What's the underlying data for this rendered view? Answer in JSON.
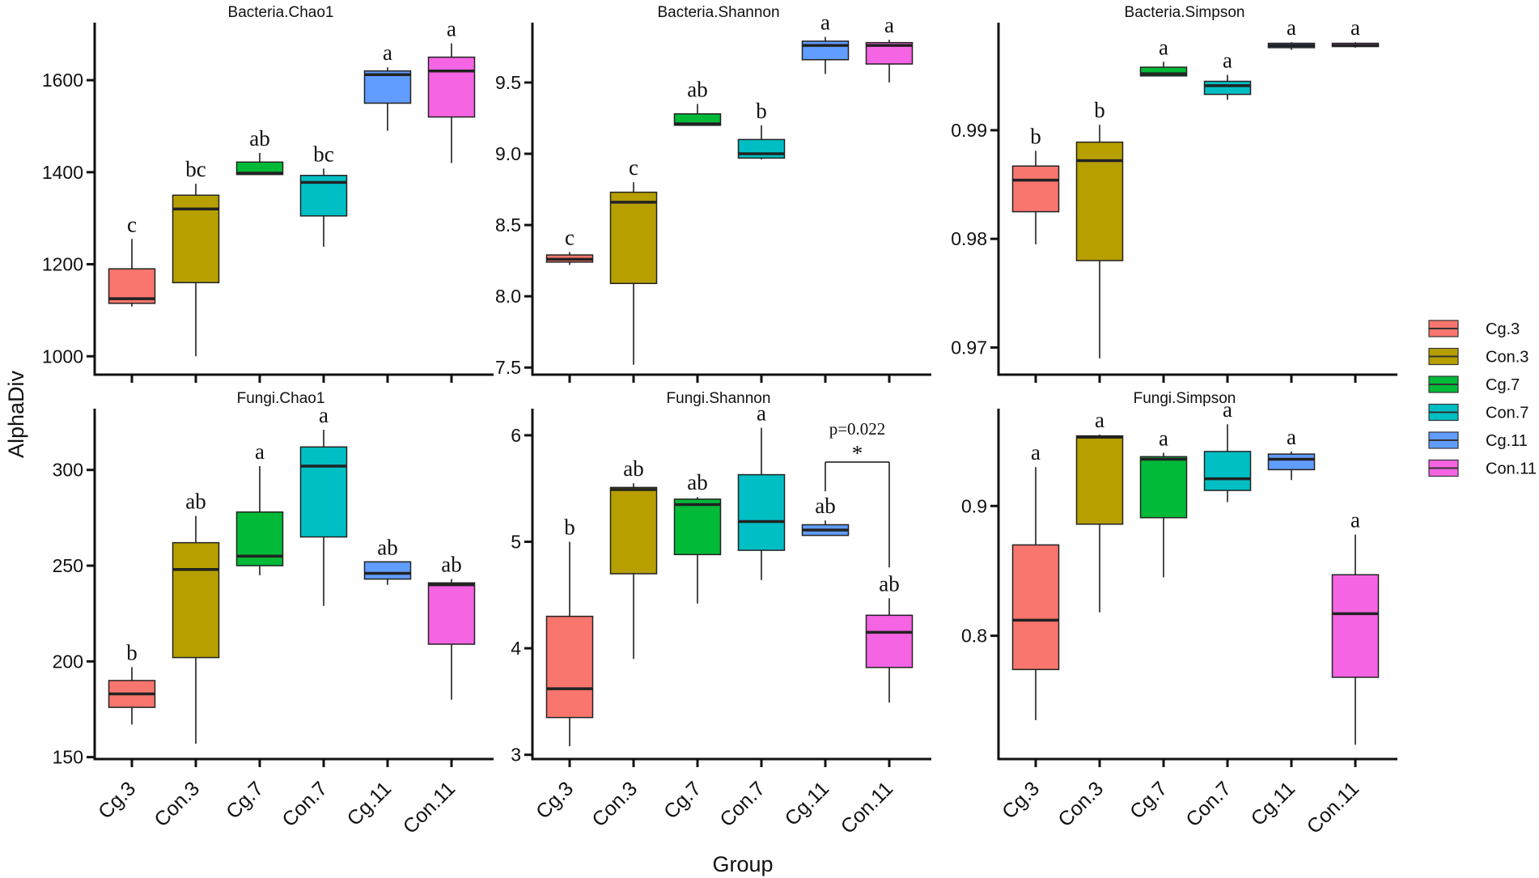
{
  "chart_data": {
    "type": "box",
    "x_label": "Group",
    "y_label": "AlphaDiv",
    "groups": [
      "Cg.3",
      "Con.3",
      "Cg.7",
      "Con.7",
      "Cg.11",
      "Con.11"
    ],
    "colors": [
      "#F8766D",
      "#B79F00",
      "#00BA38",
      "#00BFC4",
      "#619CFF",
      "#F564E3"
    ],
    "panels": [
      {
        "title": "Bacteria.Chao1",
        "ylim": [
          960,
          1725
        ],
        "yticks": [
          1000,
          1200,
          1400,
          1600
        ],
        "ytick_labels": [
          "1000",
          "1200",
          "1400",
          "1600"
        ],
        "boxes": [
          {
            "group": "Cg.3",
            "min": 1108,
            "q1": 1115,
            "median": 1125,
            "q3": 1190,
            "max": 1255,
            "letter": "c"
          },
          {
            "group": "Con.3",
            "min": 1000,
            "q1": 1160,
            "median": 1320,
            "q3": 1350,
            "max": 1375,
            "letter": "bc"
          },
          {
            "group": "Cg.7",
            "min": 1395,
            "q1": 1395,
            "median": 1398,
            "q3": 1422,
            "max": 1442,
            "letter": "ab"
          },
          {
            "group": "Con.7",
            "min": 1238,
            "q1": 1305,
            "median": 1378,
            "q3": 1393,
            "max": 1408,
            "letter": "bc"
          },
          {
            "group": "Cg.11",
            "min": 1490,
            "q1": 1550,
            "median": 1612,
            "q3": 1620,
            "max": 1628,
            "letter": "a"
          },
          {
            "group": "Con.11",
            "min": 1420,
            "q1": 1520,
            "median": 1620,
            "q3": 1650,
            "max": 1680,
            "letter": "a"
          }
        ]
      },
      {
        "title": "Bacteria.Shannon",
        "ylim": [
          7.45,
          9.92
        ],
        "yticks": [
          7.5,
          8.0,
          8.5,
          9.0,
          9.5
        ],
        "ytick_labels": [
          "7.5",
          "8.0",
          "8.5",
          "9.0",
          "9.5"
        ],
        "boxes": [
          {
            "group": "Cg.3",
            "min": 8.22,
            "q1": 8.24,
            "median": 8.26,
            "q3": 8.29,
            "max": 8.31,
            "letter": "c"
          },
          {
            "group": "Con.3",
            "min": 7.52,
            "q1": 8.09,
            "median": 8.66,
            "q3": 8.73,
            "max": 8.8,
            "letter": "c"
          },
          {
            "group": "Cg.7",
            "min": 9.2,
            "q1": 9.2,
            "median": 9.21,
            "q3": 9.28,
            "max": 9.35,
            "letter": "ab"
          },
          {
            "group": "Con.7",
            "min": 8.96,
            "q1": 8.97,
            "median": 9.0,
            "q3": 9.1,
            "max": 9.2,
            "letter": "b"
          },
          {
            "group": "Cg.11",
            "min": 9.56,
            "q1": 9.66,
            "median": 9.76,
            "q3": 9.79,
            "max": 9.82,
            "letter": "a"
          },
          {
            "group": "Con.11",
            "min": 9.5,
            "q1": 9.63,
            "median": 9.76,
            "q3": 9.78,
            "max": 9.8,
            "letter": "a"
          }
        ]
      },
      {
        "title": "Bacteria.Simpson",
        "ylim": [
          0.9675,
          0.9999
        ],
        "yticks": [
          0.97,
          0.98,
          0.99
        ],
        "ytick_labels": [
          "0.97",
          "0.98",
          "0.99"
        ],
        "boxes": [
          {
            "group": "Cg.3",
            "min": 0.9795,
            "q1": 0.9825,
            "median": 0.9854,
            "q3": 0.9867,
            "max": 0.9881,
            "letter": "b"
          },
          {
            "group": "Con.3",
            "min": 0.969,
            "q1": 0.978,
            "median": 0.9872,
            "q3": 0.9889,
            "max": 0.9905,
            "letter": "b"
          },
          {
            "group": "Cg.7",
            "min": 0.995,
            "q1": 0.995,
            "median": 0.9952,
            "q3": 0.9958,
            "max": 0.9963,
            "letter": "a"
          },
          {
            "group": "Con.7",
            "min": 0.9928,
            "q1": 0.9933,
            "median": 0.9941,
            "q3": 0.9945,
            "max": 0.9951,
            "letter": "a"
          },
          {
            "group": "Cg.11",
            "min": 0.9974,
            "q1": 0.9976,
            "median": 0.9978,
            "q3": 0.998,
            "max": 0.9981,
            "letter": "a"
          },
          {
            "group": "Con.11",
            "min": 0.9976,
            "q1": 0.9977,
            "median": 0.9978,
            "q3": 0.998,
            "max": 0.9981,
            "letter": "a"
          }
        ]
      },
      {
        "title": "Fungi.Chao1",
        "ylim": [
          149,
          332
        ],
        "yticks": [
          150,
          200,
          250,
          300
        ],
        "ytick_labels": [
          "150",
          "200",
          "250",
          "300"
        ],
        "boxes": [
          {
            "group": "Cg.3",
            "min": 167,
            "q1": 176,
            "median": 183,
            "q3": 190,
            "max": 197,
            "letter": "b"
          },
          {
            "group": "Con.3",
            "min": 157,
            "q1": 202,
            "median": 248,
            "q3": 262,
            "max": 276,
            "letter": "ab"
          },
          {
            "group": "Cg.7",
            "min": 245,
            "q1": 250,
            "median": 255,
            "q3": 278,
            "max": 302,
            "letter": "a"
          },
          {
            "group": "Con.7",
            "min": 229,
            "q1": 265,
            "median": 302,
            "q3": 312,
            "max": 321,
            "letter": "a"
          },
          {
            "group": "Cg.11",
            "min": 240,
            "q1": 243,
            "median": 246,
            "q3": 252,
            "max": 252,
            "letter": "ab"
          },
          {
            "group": "Con.11",
            "min": 180,
            "q1": 209,
            "median": 240,
            "q3": 241,
            "max": 243,
            "letter": "ab"
          }
        ]
      },
      {
        "title": "Fungi.Shannon",
        "ylim": [
          2.96,
          6.25
        ],
        "yticks": [
          3,
          4,
          5,
          6
        ],
        "ytick_labels": [
          "3",
          "4",
          "5",
          "6"
        ],
        "boxes": [
          {
            "group": "Cg.3",
            "min": 3.08,
            "q1": 3.35,
            "median": 3.62,
            "q3": 4.3,
            "max": 5.0,
            "letter": "b"
          },
          {
            "group": "Con.3",
            "min": 3.9,
            "q1": 4.7,
            "median": 5.49,
            "q3": 5.51,
            "max": 5.55,
            "letter": "ab"
          },
          {
            "group": "Cg.7",
            "min": 4.42,
            "q1": 4.88,
            "median": 5.35,
            "q3": 5.4,
            "max": 5.42,
            "letter": "ab"
          },
          {
            "group": "Con.7",
            "min": 4.64,
            "q1": 4.92,
            "median": 5.19,
            "q3": 5.63,
            "max": 6.07,
            "letter": "a"
          },
          {
            "group": "Cg.11",
            "min": 5.06,
            "q1": 5.06,
            "median": 5.11,
            "q3": 5.16,
            "max": 5.2,
            "letter": "ab"
          },
          {
            "group": "Con.11",
            "min": 3.49,
            "q1": 3.82,
            "median": 4.15,
            "q3": 4.31,
            "max": 4.47,
            "letter": "ab"
          }
        ],
        "comparison": {
          "from": "Cg.11",
          "to": "Con.11",
          "p_label": "p=0.022",
          "star": "*"
        }
      },
      {
        "title": "Fungi.Simpson",
        "ylim": [
          0.705,
          0.975
        ],
        "yticks": [
          0.8,
          0.9
        ],
        "ytick_labels": [
          "0.8",
          "0.9"
        ],
        "boxes": [
          {
            "group": "Cg.3",
            "min": 0.735,
            "q1": 0.774,
            "median": 0.812,
            "q3": 0.87,
            "max": 0.93,
            "letter": "a"
          },
          {
            "group": "Con.3",
            "min": 0.818,
            "q1": 0.886,
            "median": 0.953,
            "q3": 0.954,
            "max": 0.955,
            "letter": "a"
          },
          {
            "group": "Cg.7",
            "min": 0.845,
            "q1": 0.891,
            "median": 0.936,
            "q3": 0.938,
            "max": 0.941,
            "letter": "a"
          },
          {
            "group": "Con.7",
            "min": 0.903,
            "q1": 0.912,
            "median": 0.921,
            "q3": 0.942,
            "max": 0.963,
            "letter": "a"
          },
          {
            "group": "Cg.11",
            "min": 0.92,
            "q1": 0.928,
            "median": 0.936,
            "q3": 0.94,
            "max": 0.942,
            "letter": "a"
          },
          {
            "group": "Con.11",
            "min": 0.716,
            "q1": 0.768,
            "median": 0.817,
            "q3": 0.847,
            "max": 0.878,
            "letter": "a"
          }
        ]
      }
    ],
    "legend": {
      "position": "right",
      "items": [
        {
          "label": "Cg.3",
          "color": "#F8766D"
        },
        {
          "label": "Con.3",
          "color": "#B79F00"
        },
        {
          "label": "Cg.7",
          "color": "#00BA38"
        },
        {
          "label": "Con.7",
          "color": "#00BFC4"
        },
        {
          "label": "Cg.11",
          "color": "#619CFF"
        },
        {
          "label": "Con.11",
          "color": "#F564E3"
        }
      ]
    }
  }
}
